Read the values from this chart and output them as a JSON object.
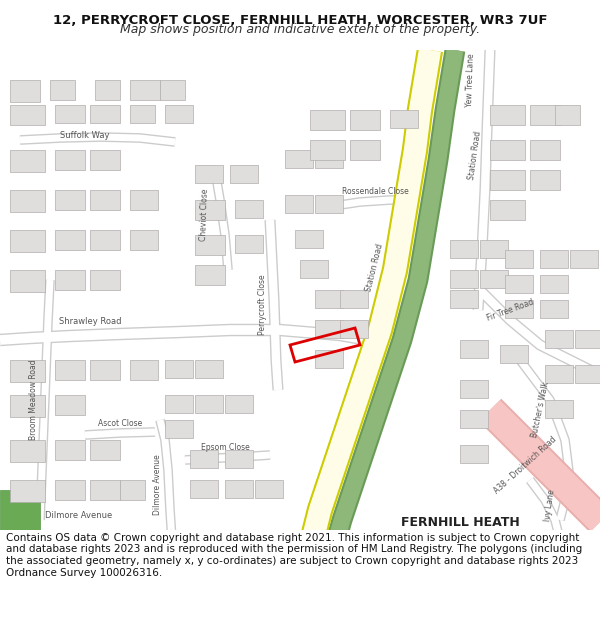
{
  "title_line1": "12, PERRYCROFT CLOSE, FERNHILL HEATH, WORCESTER, WR3 7UF",
  "title_line2": "Map shows position and indicative extent of the property.",
  "footer_text": "Contains OS data © Crown copyright and database right 2021. This information is subject to Crown copyright and database rights 2023 and is reproduced with the permission of HM Land Registry. The polygons (including the associated geometry, namely x, y co-ordinates) are subject to Crown copyright and database rights 2023 Ordnance Survey 100026316.",
  "title_fontsize": 9.5,
  "subtitle_fontsize": 9,
  "footer_fontsize": 7.5,
  "bg_color": "#ffffff",
  "map_bg": "#f5f4f2",
  "road_color": "#ffffff",
  "road_outline": "#cccccc",
  "building_color": "#e0dedd",
  "building_outline": "#b0adac",
  "major_road_fill": "#fffaaa",
  "major_road_outline": "#cccccc",
  "green_area_color": "#8db87a",
  "pink_road_color": "#f7c6c4",
  "red_box_color": "#dd0000",
  "text_color": "#333333",
  "road_text_color": "#555555",
  "fernhill_heath_color": "#333333"
}
